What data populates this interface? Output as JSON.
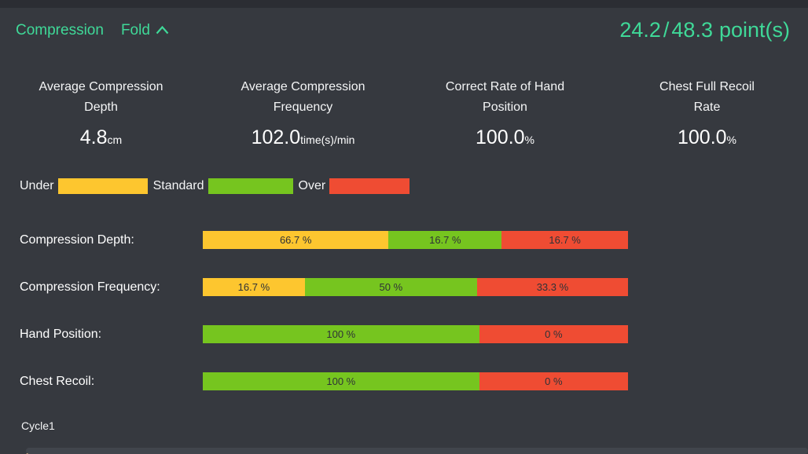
{
  "header": {
    "title": "Compression",
    "fold_label": "Fold",
    "score": "24.2",
    "score_separator": "/",
    "score_total": "48.3",
    "score_unit": "point(s)",
    "accent_color": "#3fd998"
  },
  "stats": [
    {
      "label_lines": [
        "Average Compression",
        "Depth"
      ],
      "value": "4.8",
      "unit": "cm"
    },
    {
      "label_lines": [
        "Average Compression",
        "Frequency"
      ],
      "value": "102.0",
      "unit": "time(s)/min"
    },
    {
      "label_lines": [
        "Correct Rate of Hand",
        "Position"
      ],
      "value": "100.0",
      "unit": "%"
    },
    {
      "label_lines": [
        "Chest Full Recoil",
        "Rate"
      ],
      "value": "100.0",
      "unit": "%"
    }
  ],
  "legend": [
    {
      "label": "Under",
      "color": "#fdc62f"
    },
    {
      "label": "Standard",
      "color": "#76c51f"
    },
    {
      "label": "Over",
      "color": "#ef4c33"
    }
  ],
  "chart_data": {
    "type": "bar",
    "stacked": true,
    "orientation": "horizontal",
    "unit": "%",
    "legend_entries": [
      "Under",
      "Standard",
      "Over"
    ],
    "series_colors": {
      "Under": "#fdc62f",
      "Standard": "#76c51f",
      "Over": "#ef4c33"
    },
    "rows": [
      {
        "label": "Compression Depth:",
        "segments": [
          {
            "series": "Under",
            "display": "66.7 %",
            "value": 66.7,
            "color": "#fdc62f",
            "width_pct": 43.7
          },
          {
            "series": "Standard",
            "display": "16.7 %",
            "value": 16.7,
            "color": "#76c51f",
            "width_pct": 26.6
          },
          {
            "series": "Over",
            "display": "16.7 %",
            "value": 16.7,
            "color": "#ef4c33",
            "width_pct": 29.7
          }
        ]
      },
      {
        "label": "Compression Frequency:",
        "segments": [
          {
            "series": "Under",
            "display": "16.7 %",
            "value": 16.7,
            "color": "#fdc62f",
            "width_pct": 24.0
          },
          {
            "series": "Standard",
            "display": "50 %",
            "value": 50,
            "color": "#76c51f",
            "width_pct": 40.5
          },
          {
            "series": "Over",
            "display": "33.3 %",
            "value": 33.3,
            "color": "#ef4c33",
            "width_pct": 35.5
          }
        ]
      },
      {
        "label": "Hand Position:",
        "segments": [
          {
            "series": "Standard",
            "display": "100 %",
            "value": 100,
            "color": "#76c51f",
            "width_pct": 65
          },
          {
            "series": "Over",
            "display": "0 %",
            "value": 0,
            "color": "#ef4c33",
            "width_pct": 35
          }
        ]
      },
      {
        "label": "Chest Recoil:",
        "segments": [
          {
            "series": "Standard",
            "display": "100 %",
            "value": 100,
            "color": "#76c51f",
            "width_pct": 65
          },
          {
            "series": "Over",
            "display": "0 %",
            "value": 0,
            "color": "#ef4c33",
            "width_pct": 35
          }
        ]
      }
    ]
  },
  "footer": {
    "cycle_label": "Cycle1",
    "star_icon": "star",
    "star_badge_color": "#f5c78e",
    "star_color": "#c9802e"
  }
}
